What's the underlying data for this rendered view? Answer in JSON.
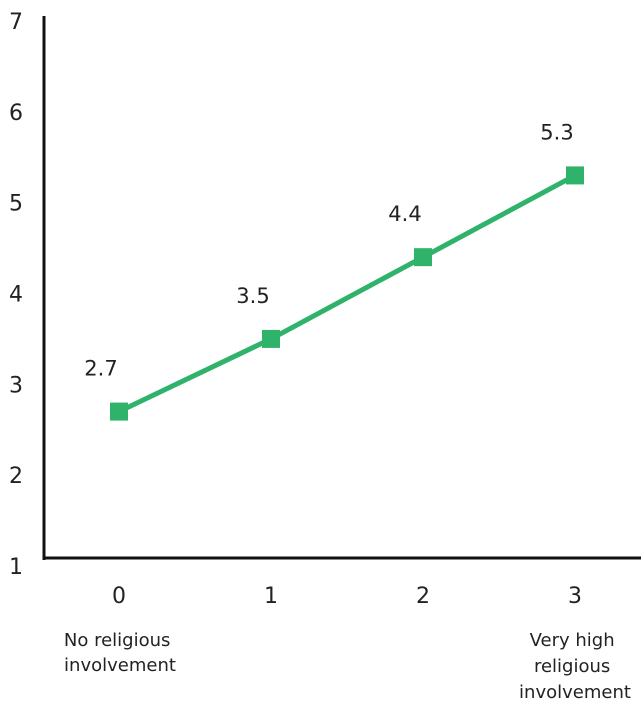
{
  "chart_data": {
    "type": "line",
    "x": [
      0,
      1,
      2,
      3
    ],
    "x_tick_labels": [
      "0",
      "1",
      "2",
      "3"
    ],
    "values": [
      2.7,
      3.5,
      4.4,
      5.3
    ],
    "data_labels": [
      "2.7",
      "3.5",
      "4.4",
      "5.3"
    ],
    "ylim": [
      1,
      7
    ],
    "y_ticks": [
      1,
      2,
      3,
      4,
      5,
      6,
      7
    ],
    "y_tick_labels": [
      "1",
      "2",
      "3",
      "4",
      "5",
      "6",
      "7"
    ],
    "x_annotations": {
      "left": [
        "No religious",
        "involvement"
      ],
      "right": [
        "Very high",
        "religious",
        "involvement"
      ]
    },
    "grid": false,
    "legend": "none",
    "marker": "square",
    "colors": {
      "series": "#2fb36b",
      "axis": "#111111",
      "text": "#222222"
    }
  }
}
